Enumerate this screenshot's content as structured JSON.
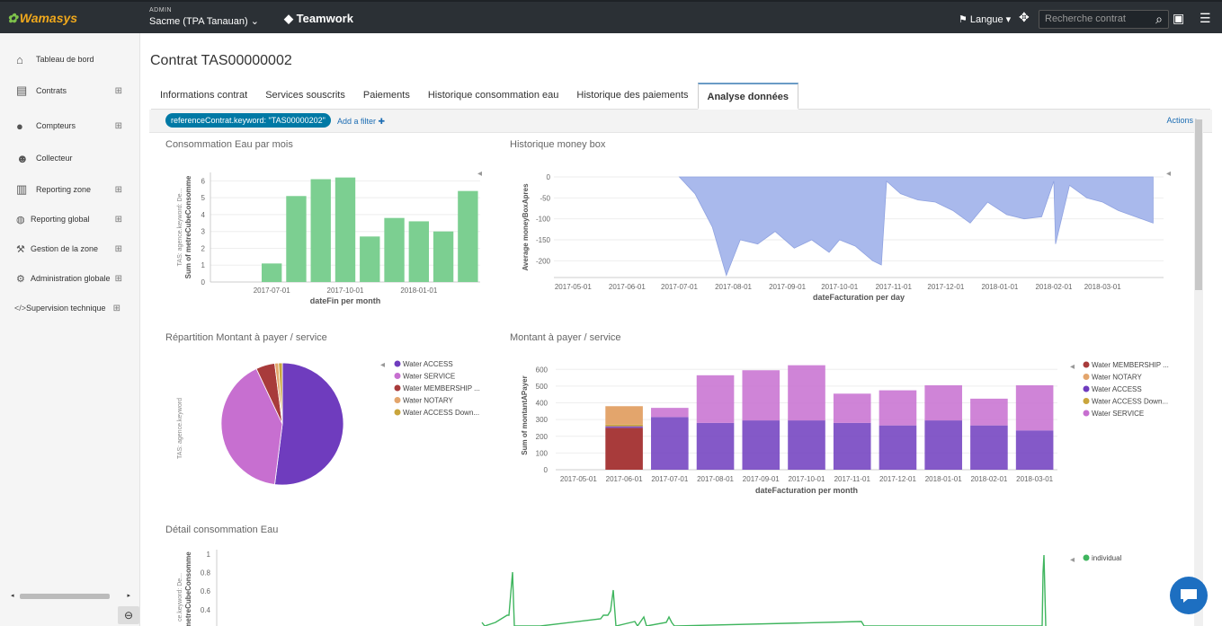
{
  "topbar": {
    "logo": "Wamasys",
    "admin_label": "ADMIN",
    "admin_value": "Sacme (TPA Tanauan) ⌄",
    "team_label": "Teamwork",
    "lang_label": "Langue ▾",
    "search_placeholder": "Recherche contrat"
  },
  "sidebar": {
    "items": [
      {
        "label": "Tableau de bord",
        "icon": "home-icon"
      },
      {
        "label": "Contrats",
        "icon": "briefcase-icon"
      },
      {
        "label": "Compteurs",
        "icon": "drop-icon"
      },
      {
        "label": "Collecteur",
        "icon": "users-icon"
      },
      {
        "label": "Reporting zone",
        "icon": "bar-chart-icon"
      },
      {
        "label": "Reporting global",
        "icon": "globe-icon"
      },
      {
        "label": "Gestion de la zone",
        "icon": "wrench-icon"
      },
      {
        "label": "Administration globale",
        "icon": "gears-icon"
      },
      {
        "label": "Supervision technique",
        "icon": "code-icon"
      }
    ]
  },
  "page": {
    "title": "Contrat TAS00000002",
    "tabs": [
      "Informations contrat",
      "Services souscrits",
      "Paiements",
      "Historique consommation eau",
      "Historique des paiements",
      "Analyse données"
    ],
    "filter_pill": "referenceContrat.keyword: \"TAS00000202\"",
    "add_filter": "Add a filter ✚",
    "actions": "Actions ▸"
  },
  "panels": {
    "p1_title": "Consommation Eau par mois",
    "p2_title": "Historique money box",
    "p3_title": "Répartition Montant à payer / service",
    "p4_title": "Montant à payer / service",
    "p5_title": "Détail consommation Eau"
  },
  "colors": {
    "green": "#7ccf91",
    "area": "#a9b9ec",
    "purple": "#6f3cbe",
    "violet": "#c76fd0",
    "red": "#a83b3b",
    "orange": "#e3a56c",
    "olive": "#c9a53c"
  },
  "chart_data": [
    {
      "type": "bar",
      "title": "Consommation Eau par mois",
      "xlabel": "dateFin per month",
      "ylabel": "Sum of metreCubeConsomme",
      "side_label": "TAS: agence.keyword: De...",
      "tick_labels": [
        "2017-07-01",
        "2017-10-01",
        "2018-01-01"
      ],
      "categories": [
        "2017-05",
        "2017-06",
        "2017-07",
        "2017-08",
        "2017-09",
        "2017-10",
        "2017-11",
        "2017-12",
        "2018-01",
        "2018-02",
        "2018-03"
      ],
      "values": [
        0,
        0,
        1.1,
        5.1,
        6.1,
        6.2,
        2.7,
        3.8,
        3.6,
        3.0,
        5.4
      ],
      "ylim": [
        0,
        6.5
      ],
      "yticks": [
        0,
        1,
        2,
        3,
        4,
        5,
        6
      ]
    },
    {
      "type": "area",
      "title": "Historique money box",
      "xlabel": "dateFacturation per day",
      "ylabel": "Average moneyBoxApres",
      "tick_labels": [
        "2017-05-01",
        "2017-06-01",
        "2017-07-01",
        "2017-08-01",
        "2017-09-01",
        "2017-10-01",
        "2017-11-01",
        "2017-12-01",
        "2018-01-01",
        "2018-02-01",
        "2018-03-01"
      ],
      "yticks": [
        0,
        -50,
        -100,
        -150,
        -200
      ],
      "ylim": [
        -240,
        0
      ],
      "x": [
        "2017-07-01",
        "2017-07-10",
        "2017-07-20",
        "2017-07-28",
        "2017-08-05",
        "2017-08-15",
        "2017-08-25",
        "2017-09-05",
        "2017-09-15",
        "2017-09-25",
        "2017-10-01",
        "2017-10-10",
        "2017-10-20",
        "2017-10-25",
        "2017-10-28",
        "2017-11-05",
        "2017-11-15",
        "2017-11-25",
        "2017-12-05",
        "2017-12-15",
        "2017-12-25",
        "2018-01-05",
        "2018-01-15",
        "2018-01-25",
        "2018-02-01",
        "2018-02-02",
        "2018-02-10",
        "2018-02-20",
        "2018-03-01",
        "2018-03-10",
        "2018-03-20",
        "2018-03-30"
      ],
      "values": [
        0,
        -40,
        -120,
        -235,
        -150,
        -160,
        -130,
        -170,
        -150,
        -180,
        -150,
        -165,
        -200,
        -210,
        -10,
        -40,
        -55,
        -60,
        -80,
        -110,
        -60,
        -90,
        -100,
        -95,
        -10,
        -160,
        -20,
        -50,
        -60,
        -80,
        -95,
        -110
      ]
    },
    {
      "type": "pie",
      "title": "Répartition Montant à payer / service",
      "side_label": "TAS: agence.keyword",
      "labels": [
        "Water ACCESS",
        "Water SERVICE",
        "Water MEMBERSHIP ...",
        "Water NOTARY",
        "Water ACCESS Down..."
      ],
      "values": [
        52,
        41,
        5,
        1,
        1
      ]
    },
    {
      "type": "bar",
      "title": "Montant à payer / service",
      "xlabel": "dateFacturation per month",
      "ylabel": "Sum of montantAPayer",
      "categories": [
        "2017-05-01",
        "2017-06-01",
        "2017-07-01",
        "2017-08-01",
        "2017-09-01",
        "2017-10-01",
        "2017-11-01",
        "2017-12-01",
        "2018-01-01",
        "2018-02-01",
        "2018-03-01"
      ],
      "yticks": [
        0,
        100,
        200,
        300,
        400,
        500,
        600
      ],
      "ylim": [
        0,
        650
      ],
      "legend": [
        "Water MEMBERSHIP ...",
        "Water NOTARY",
        "Water ACCESS",
        "Water ACCESS Down...",
        "Water SERVICE"
      ],
      "series": [
        {
          "name": "Water MEMBERSHIP ...",
          "values": [
            0,
            250,
            0,
            0,
            0,
            0,
            0,
            0,
            0,
            0,
            0
          ]
        },
        {
          "name": "Water NOTARY",
          "values": [
            0,
            110,
            0,
            0,
            0,
            0,
            0,
            0,
            0,
            0,
            0
          ]
        },
        {
          "name": "Water ACCESS",
          "values": [
            0,
            10,
            315,
            280,
            295,
            295,
            280,
            265,
            295,
            265,
            235
          ]
        },
        {
          "name": "Water ACCESS Down...",
          "values": [
            0,
            10,
            0,
            0,
            0,
            0,
            0,
            0,
            0,
            0,
            0
          ]
        },
        {
          "name": "Water SERVICE",
          "values": [
            0,
            0,
            55,
            285,
            300,
            330,
            175,
            210,
            210,
            160,
            270
          ]
        }
      ]
    },
    {
      "type": "line",
      "title": "Détail consommation Eau",
      "ylabel": "metreCubeConsomme",
      "side_label": "ce.keyword: De...",
      "yticks": [
        1,
        0.8,
        0.6,
        0.4
      ],
      "legend": [
        "individual"
      ]
    }
  ]
}
